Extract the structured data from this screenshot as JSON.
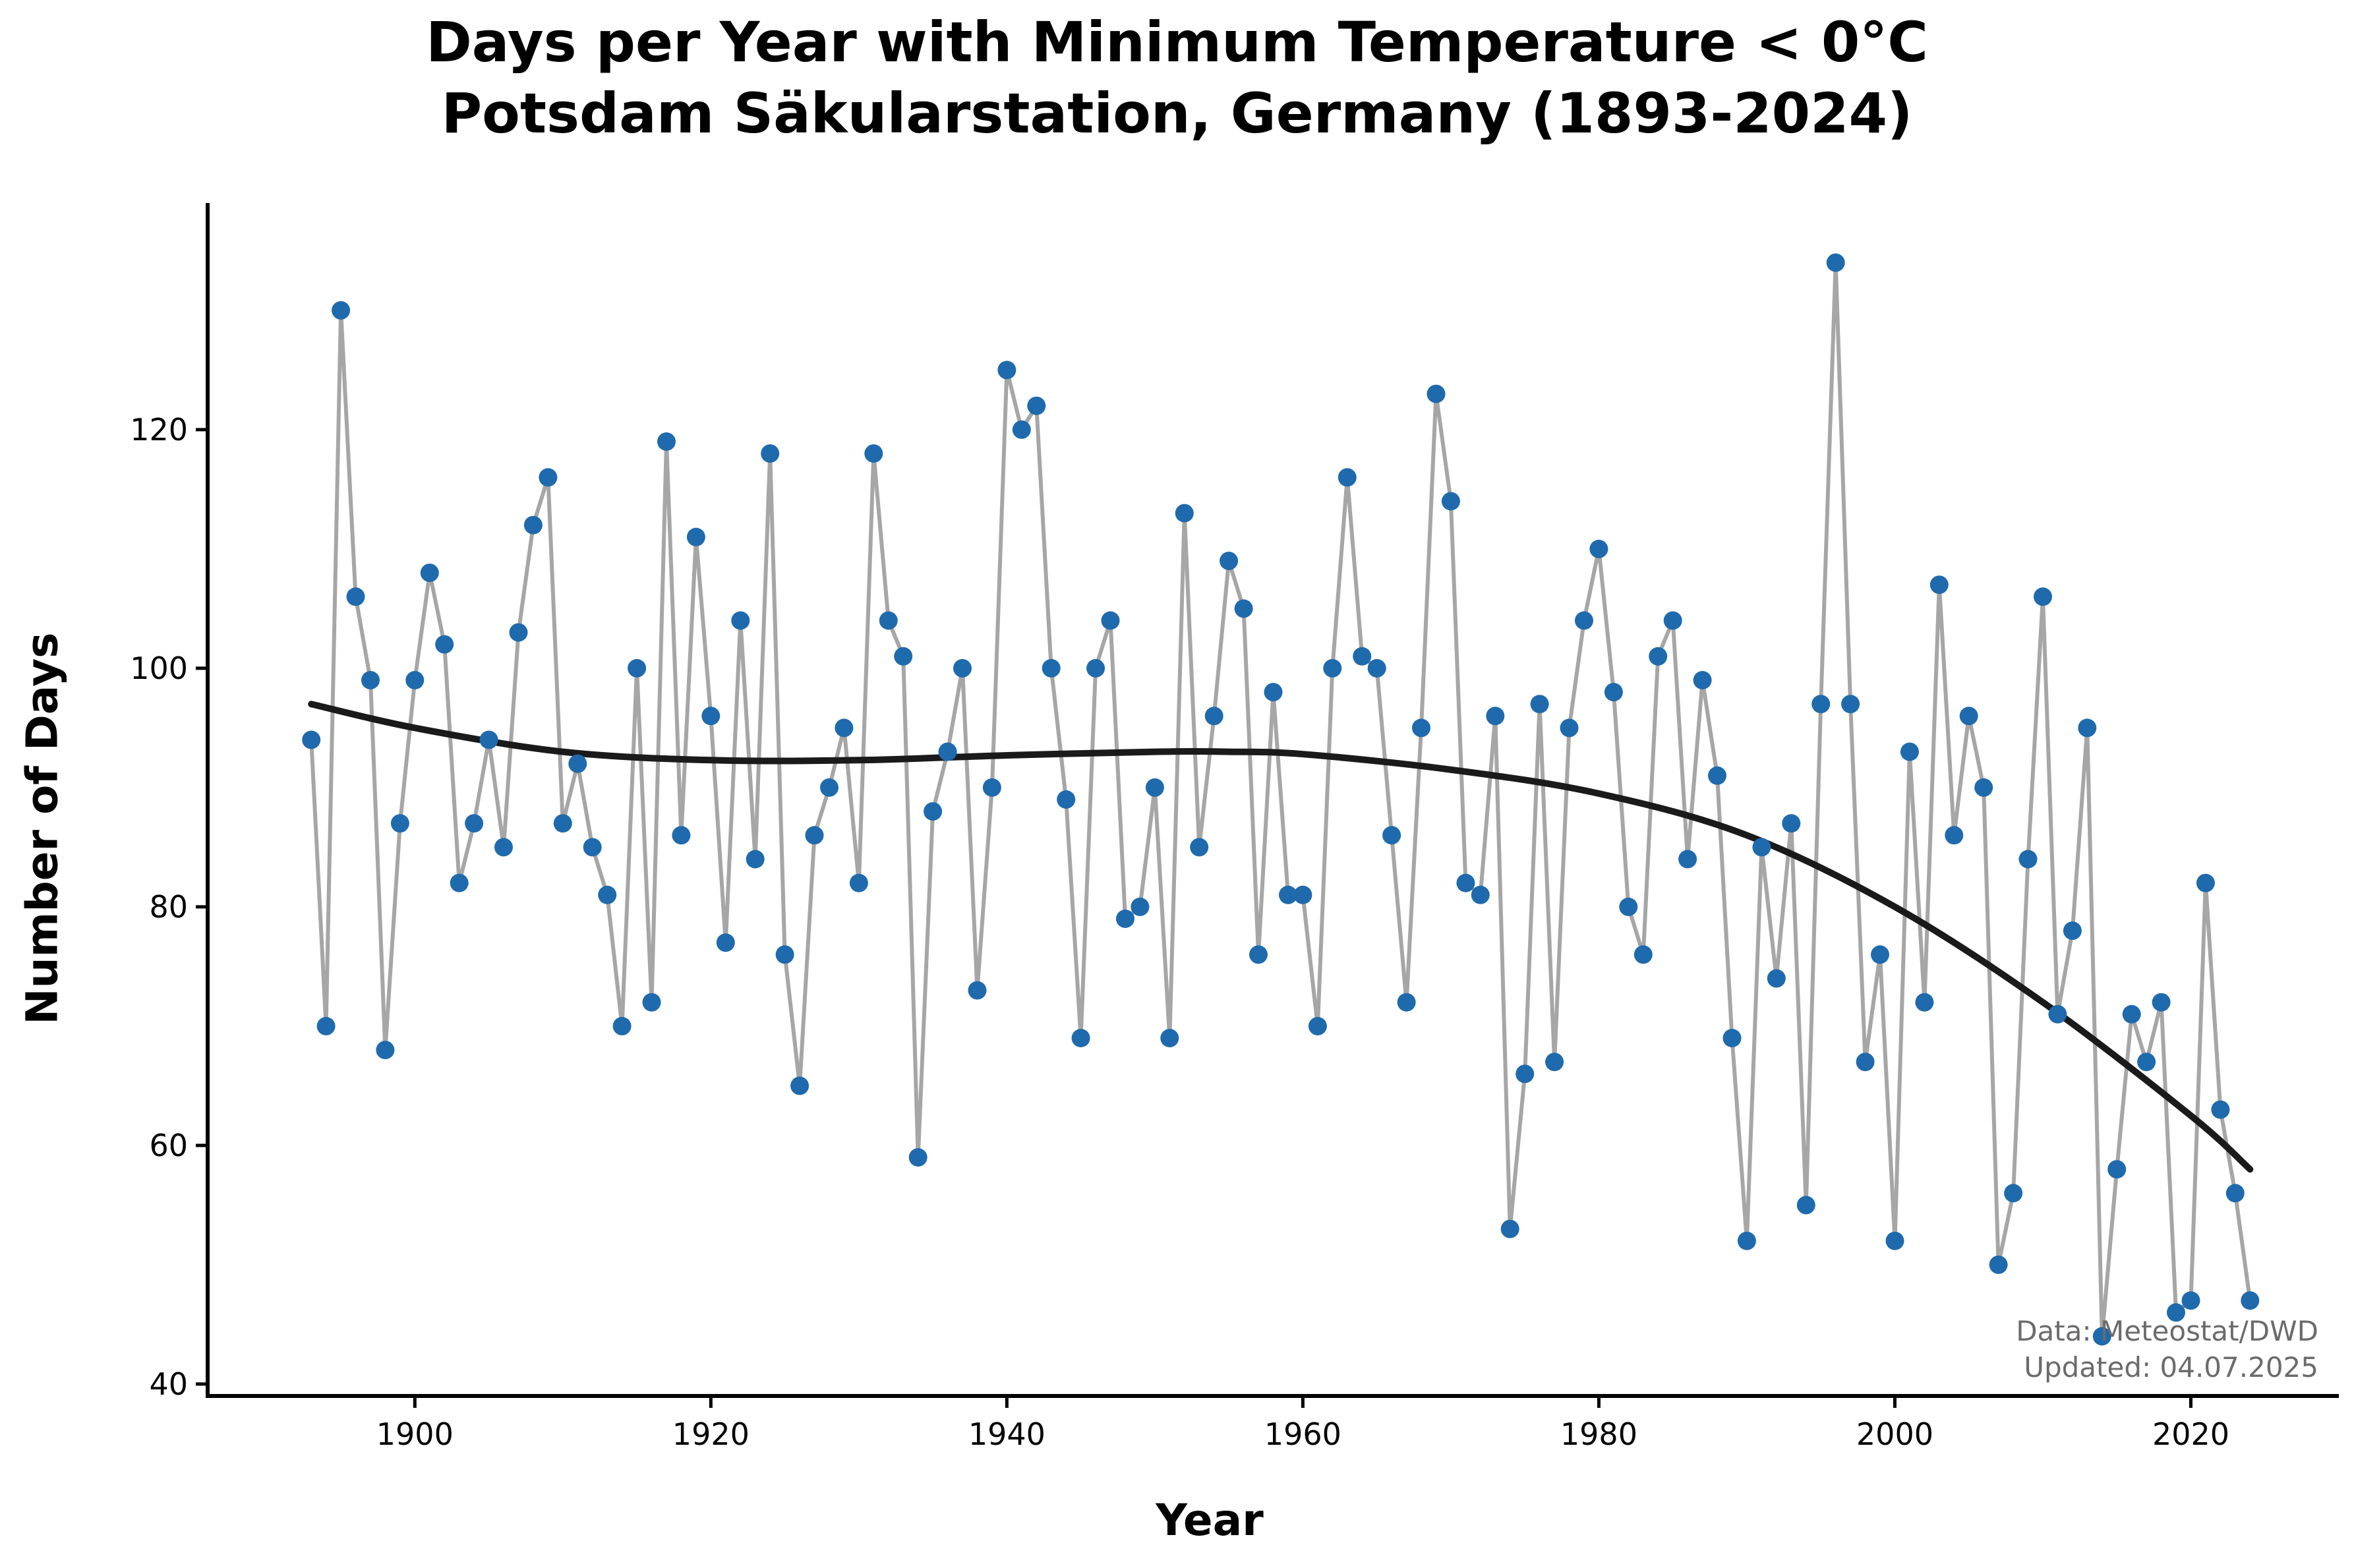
{
  "chart_data": {
    "type": "line",
    "title": "Days per Year with Minimum Temperature < 0°C",
    "subtitle": "Potsdam Säkularstation, Germany (1893-2024)",
    "xlabel": "Year",
    "ylabel": "Number of Days",
    "xlim": [
      1886,
      2030
    ],
    "ylim": [
      39,
      139
    ],
    "xticks": [
      1900,
      1920,
      1940,
      1960,
      1980,
      2000,
      2020
    ],
    "yticks": [
      40,
      60,
      80,
      100,
      120
    ],
    "grid": false,
    "legend": "none",
    "series": [
      {
        "type": "line+markers",
        "line_color": "#a6a6a6",
        "marker_color": "#1f6aad",
        "x": [
          1893,
          1894,
          1895,
          1896,
          1897,
          1898,
          1899,
          1900,
          1901,
          1902,
          1903,
          1904,
          1905,
          1906,
          1907,
          1908,
          1909,
          1910,
          1911,
          1912,
          1913,
          1914,
          1915,
          1916,
          1917,
          1918,
          1919,
          1920,
          1921,
          1922,
          1923,
          1924,
          1925,
          1926,
          1927,
          1928,
          1929,
          1930,
          1931,
          1932,
          1933,
          1934,
          1935,
          1936,
          1937,
          1938,
          1939,
          1940,
          1941,
          1942,
          1943,
          1944,
          1945,
          1946,
          1947,
          1948,
          1949,
          1950,
          1951,
          1952,
          1953,
          1954,
          1955,
          1956,
          1957,
          1958,
          1959,
          1960,
          1961,
          1962,
          1963,
          1964,
          1965,
          1966,
          1967,
          1968,
          1969,
          1970,
          1971,
          1972,
          1973,
          1974,
          1975,
          1976,
          1977,
          1978,
          1979,
          1980,
          1981,
          1982,
          1983,
          1984,
          1985,
          1986,
          1987,
          1988,
          1989,
          1990,
          1991,
          1992,
          1993,
          1994,
          1995,
          1996,
          1997,
          1998,
          1999,
          2000,
          2001,
          2002,
          2003,
          2004,
          2005,
          2006,
          2007,
          2008,
          2009,
          2010,
          2011,
          2012,
          2013,
          2014,
          2015,
          2016,
          2017,
          2018,
          2019,
          2020,
          2021,
          2022,
          2023,
          2024
        ],
        "y": [
          94,
          70,
          130,
          106,
          99,
          68,
          87,
          99,
          108,
          102,
          82,
          87,
          94,
          85,
          103,
          112,
          116,
          87,
          92,
          85,
          81,
          70,
          100,
          72,
          119,
          86,
          111,
          96,
          77,
          104,
          84,
          118,
          76,
          65,
          86,
          90,
          95,
          82,
          118,
          104,
          101,
          59,
          88,
          93,
          100,
          73,
          90,
          125,
          120,
          122,
          100,
          89,
          69,
          100,
          104,
          79,
          80,
          90,
          69,
          113,
          85,
          96,
          109,
          105,
          76,
          98,
          81,
          81,
          70,
          100,
          116,
          101,
          100,
          86,
          72,
          95,
          123,
          114,
          82,
          81,
          96,
          53,
          66,
          97,
          67,
          95,
          104,
          110,
          98,
          80,
          76,
          101,
          104,
          84,
          99,
          91,
          69,
          52,
          85,
          74,
          87,
          55,
          97,
          134,
          97,
          67,
          76,
          52,
          93,
          72,
          107,
          86,
          96,
          90,
          50,
          56,
          84,
          106,
          71,
          78,
          95,
          44,
          58,
          71,
          67,
          72,
          46,
          47,
          82,
          63,
          56,
          47
        ]
      },
      {
        "type": "trend",
        "line_color": "#1a1a1a",
        "x": [
          1893,
          1900,
          1910,
          1920,
          1930,
          1940,
          1950,
          1955,
          1960,
          1970,
          1980,
          1990,
          2000,
          2010,
          2020,
          2024
        ],
        "y": [
          97,
          95,
          93,
          92.3,
          92.3,
          92.7,
          93,
          93,
          92.8,
          91.5,
          89.5,
          86,
          80,
          72,
          62.5,
          58
        ]
      }
    ]
  },
  "source_note": {
    "line1": "Data: Meteostat/DWD",
    "line2": "Updated: 04.07.2025"
  }
}
